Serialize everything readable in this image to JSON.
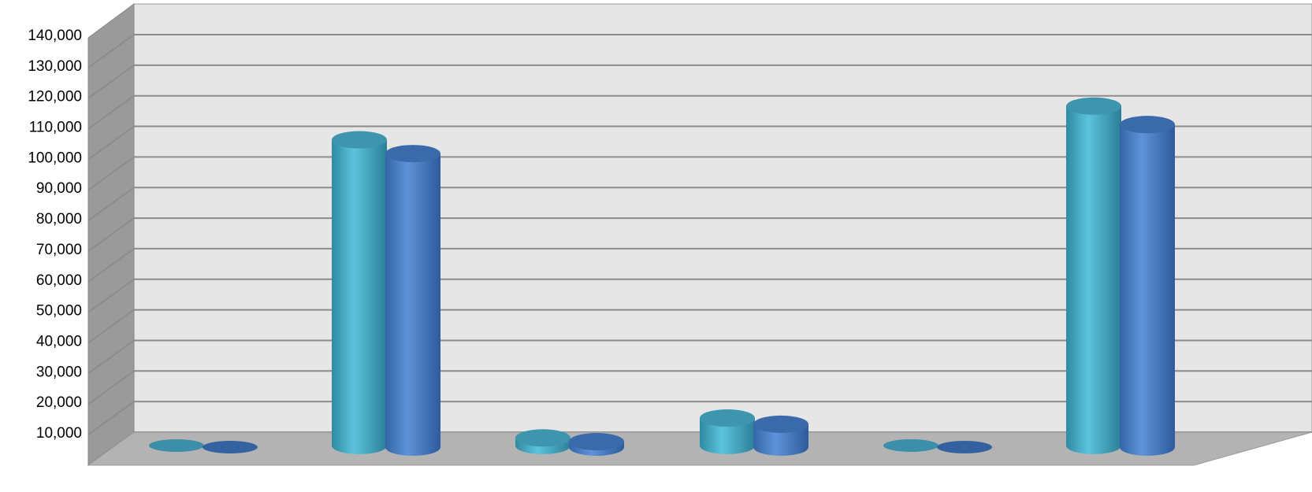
{
  "chart_data": {
    "type": "bar",
    "style": "3d-cylinder",
    "categories": [
      "",
      "",
      "",
      "",
      "",
      ""
    ],
    "series": [
      {
        "values": [
          0,
          100000,
          2500,
          9000,
          0,
          111000
        ],
        "color": "#4bacc6"
      },
      {
        "values": [
          0,
          96000,
          1800,
          7500,
          0,
          105500
        ],
        "color": "#4f81bd"
      }
    ],
    "ylim": [
      0,
      140000
    ],
    "yticks": [
      10000,
      20000,
      30000,
      40000,
      50000,
      60000,
      70000,
      80000,
      90000,
      100000,
      110000,
      120000,
      130000,
      140000
    ],
    "ytick_labels": [
      "10,000",
      "20,000",
      "30,000",
      "40,000",
      "50,000",
      "60,000",
      "70,000",
      "80,000",
      "90,000",
      "100,000",
      "110,000",
      "120,000",
      "130,000",
      "140,000"
    ],
    "grid": true,
    "legend": "none",
    "title": "",
    "xlabel": "",
    "ylabel": ""
  }
}
